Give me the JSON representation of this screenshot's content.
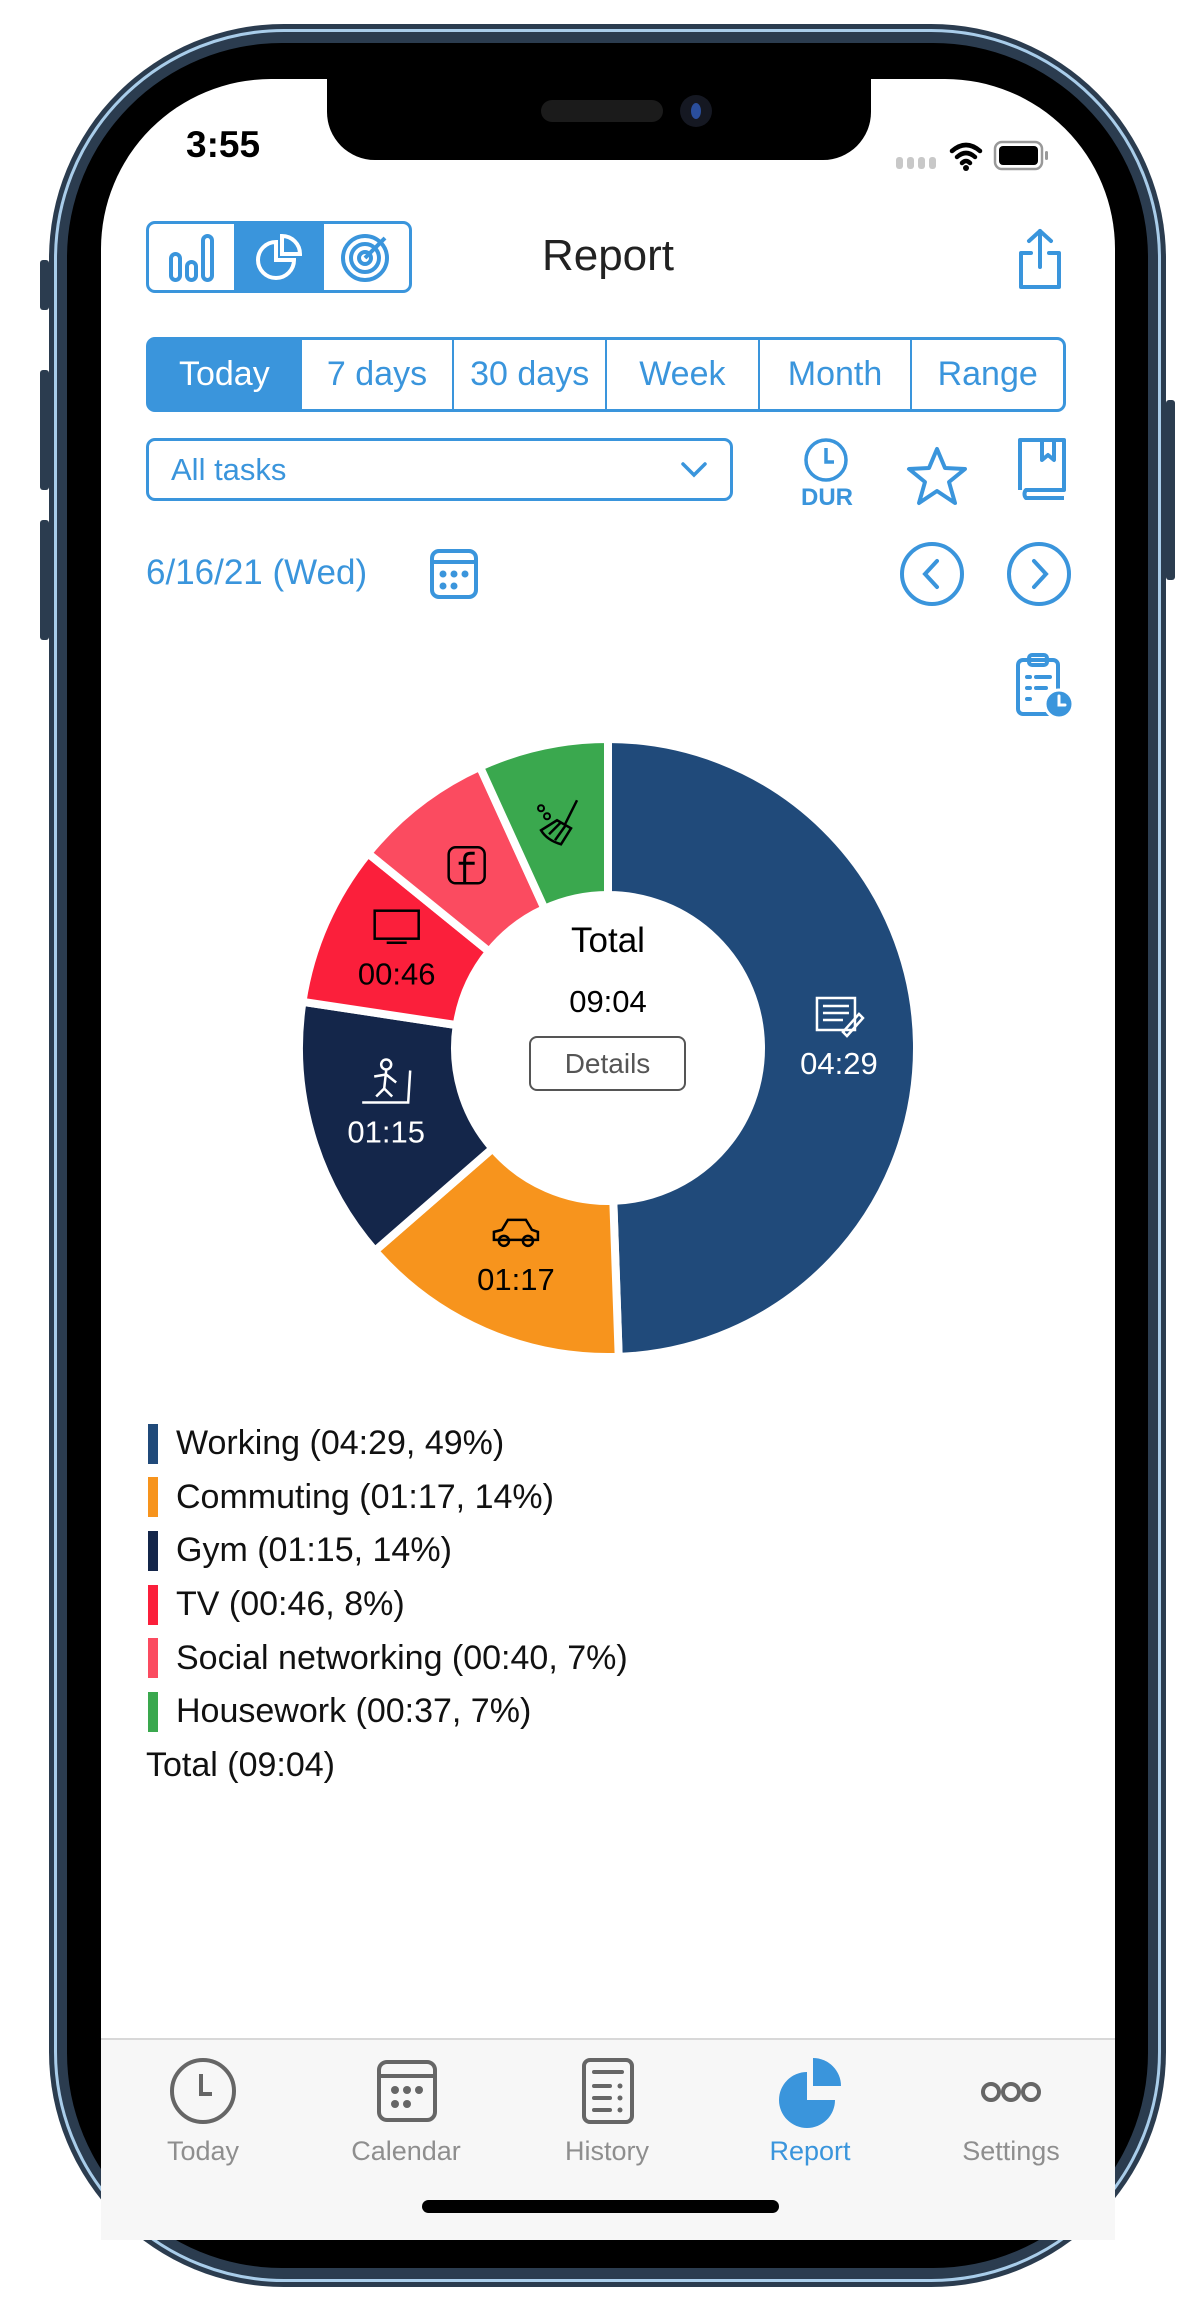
{
  "status_bar": {
    "time": "3:55"
  },
  "header": {
    "title": "Report",
    "view_modes": [
      {
        "name": "bar-chart-icon",
        "selected": false
      },
      {
        "name": "pie-chart-icon",
        "selected": true
      },
      {
        "name": "target-icon",
        "selected": false
      }
    ],
    "share_icon": "share-icon"
  },
  "periods": [
    {
      "label": "Today",
      "selected": true
    },
    {
      "label": "7 days",
      "selected": false
    },
    {
      "label": "30 days",
      "selected": false
    },
    {
      "label": "Week",
      "selected": false
    },
    {
      "label": "Month",
      "selected": false
    },
    {
      "label": "Range",
      "selected": false
    }
  ],
  "filter": {
    "value": "All tasks",
    "dur_label": "DUR"
  },
  "date": {
    "label": "6/16/21 (Wed)"
  },
  "center": {
    "title": "Total",
    "time": "09:04",
    "details_label": "Details"
  },
  "colors": {
    "accent": "#3a95dc"
  },
  "chart_data": {
    "type": "pie",
    "variant": "donut",
    "categories": [
      "Working",
      "Commuting",
      "Gym",
      "TV",
      "Social networking",
      "Housework"
    ],
    "values_minutes": [
      269,
      77,
      75,
      46,
      40,
      37
    ],
    "labels": [
      "04:29",
      "01:17",
      "01:15",
      "00:46",
      "",
      ""
    ],
    "icons": [
      "document-edit-icon",
      "car-icon",
      "treadmill-icon",
      "tv-icon",
      "facebook-icon",
      "broom-icon"
    ],
    "colors": [
      "#204a7a",
      "#f7941d",
      "#14264a",
      "#fb1f3b",
      "#fb4b60",
      "#3aa84e"
    ],
    "label_colors": [
      "#ffffff",
      "#000000",
      "#ffffff",
      "#000000",
      "#000000",
      "#000000"
    ],
    "total": "09:04"
  },
  "legend": [
    {
      "text": "Working (04:29, 49%)",
      "color": "#204a7a"
    },
    {
      "text": "Commuting (01:17, 14%)",
      "color": "#f7941d"
    },
    {
      "text": "Gym (01:15, 14%)",
      "color": "#14264a"
    },
    {
      "text": "TV (00:46, 8%)",
      "color": "#fb1f3b"
    },
    {
      "text": "Social networking (00:40, 7%)",
      "color": "#fb4b60"
    },
    {
      "text": "Housework (00:37, 7%)",
      "color": "#3aa84e"
    }
  ],
  "legend_total": "Total (09:04)",
  "tabs": [
    {
      "label": "Today",
      "active": false
    },
    {
      "label": "Calendar",
      "active": false
    },
    {
      "label": "History",
      "active": false
    },
    {
      "label": "Report",
      "active": true
    },
    {
      "label": "Settings",
      "active": false
    }
  ]
}
